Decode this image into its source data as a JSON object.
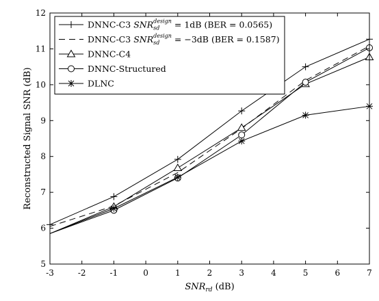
{
  "chart_data": {
    "type": "line",
    "x": [
      -3,
      -1,
      1,
      3,
      5,
      7
    ],
    "xlim": [
      -3,
      7
    ],
    "ylim": [
      5,
      12
    ],
    "xticks": [
      -3,
      -2,
      -1,
      0,
      1,
      2,
      3,
      4,
      5,
      6,
      7
    ],
    "yticks": [
      5,
      6,
      7,
      8,
      9,
      10,
      11,
      12
    ],
    "xlabel": {
      "base": "SNR",
      "sub": "rd",
      "rest": " (dB)"
    },
    "ylabel": "Reconstructed Signal SNR (dB)",
    "grid": false,
    "legend_position": "top-left",
    "series": [
      {
        "name_parts": [
          "DNNC-C3 ",
          "SNR",
          "sd",
          "design",
          " = 1dB (BER = 0.0565)"
        ],
        "values": [
          6.1,
          6.88,
          7.92,
          9.27,
          10.5,
          11.27
        ],
        "marker": "plus",
        "dash": "solid",
        "marker_at": [
          -3,
          -1,
          1,
          3,
          5,
          7
        ]
      },
      {
        "name_parts": [
          "DNNC-C3 ",
          "SNR",
          "sd",
          "design",
          " = −3dB (BER = 0.1587)"
        ],
        "values": [
          6.05,
          6.62,
          7.55,
          8.78,
          10.12,
          11.08
        ],
        "marker": "none",
        "dash": "dashed"
      },
      {
        "name": "DNNC-C4",
        "values": [
          5.85,
          6.6,
          7.68,
          8.8,
          10.02,
          10.77
        ],
        "marker": "triangle",
        "dash": "solid",
        "marker_at": [
          -1,
          1,
          3,
          5,
          7
        ]
      },
      {
        "name": "DNNC-Structured",
        "values": [
          5.85,
          6.5,
          7.4,
          8.6,
          10.07,
          11.03
        ],
        "marker": "circle",
        "dash": "solid",
        "marker_at": [
          -1,
          1,
          3,
          5,
          7
        ]
      },
      {
        "name": "DLNC",
        "values": [
          5.85,
          6.55,
          7.42,
          8.43,
          9.15,
          9.4
        ],
        "marker": "star",
        "dash": "solid",
        "marker_at": [
          -1,
          1,
          3,
          5,
          7
        ]
      }
    ]
  }
}
